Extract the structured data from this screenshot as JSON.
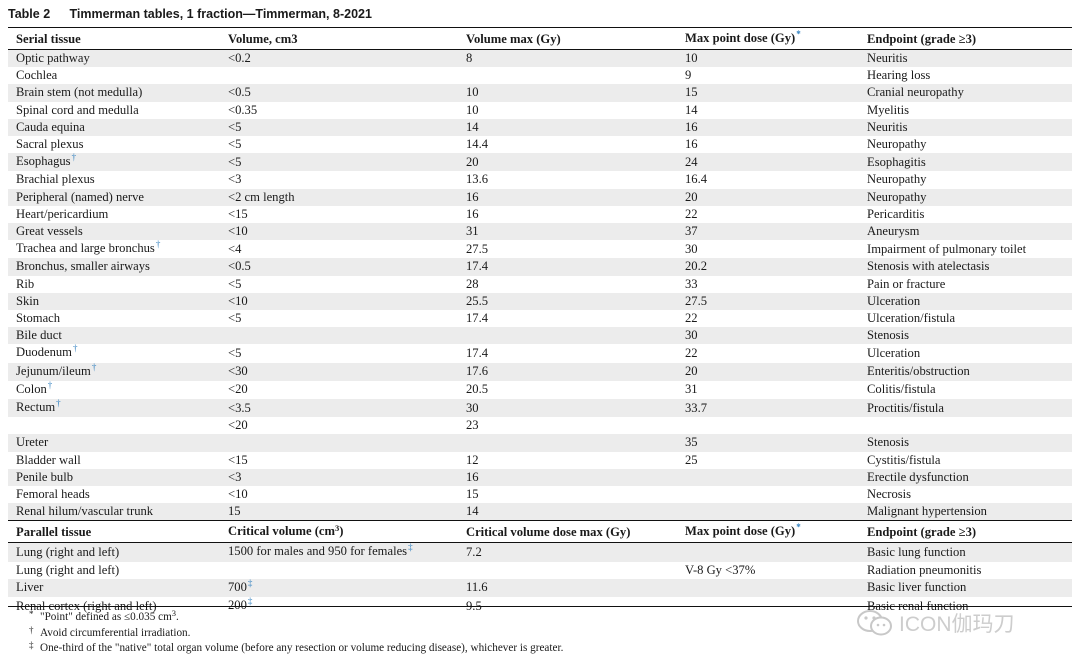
{
  "caption": {
    "label": "Table 2",
    "title": "Timmerman tables, 1 fraction—Timmerman, 8-2021"
  },
  "serial_header": [
    "Serial tissue",
    "Volume, cm3",
    "Volume max (Gy)",
    "Max point dose (Gy)",
    "Endpoint (grade ≥3)"
  ],
  "serial_header_mark": "*",
  "serial_rows": [
    [
      "Optic pathway",
      "<0.2",
      "8",
      "10",
      "Neuritis",
      ""
    ],
    [
      "Cochlea",
      "",
      "",
      "9",
      "Hearing loss",
      ""
    ],
    [
      "Brain stem (not medulla)",
      "<0.5",
      "10",
      "15",
      "Cranial neuropathy",
      ""
    ],
    [
      "Spinal cord and medulla",
      "<0.35",
      "10",
      "14",
      "Myelitis",
      ""
    ],
    [
      "Cauda equina",
      "<5",
      "14",
      "16",
      "Neuritis",
      ""
    ],
    [
      "Sacral plexus",
      "<5",
      "14.4",
      "16",
      "Neuropathy",
      ""
    ],
    [
      "Esophagus",
      "<5",
      "20",
      "24",
      "Esophagitis",
      "†"
    ],
    [
      "Brachial plexus",
      "<3",
      "13.6",
      "16.4",
      "Neuropathy",
      ""
    ],
    [
      "Peripheral (named) nerve",
      "<2 cm length",
      "16",
      "20",
      "Neuropathy",
      ""
    ],
    [
      "Heart/pericardium",
      "<15",
      "16",
      "22",
      "Pericarditis",
      ""
    ],
    [
      "Great vessels",
      "<10",
      "31",
      "37",
      "Aneurysm",
      ""
    ],
    [
      "Trachea and large bronchus",
      "<4",
      "27.5",
      "30",
      "Impairment of pulmonary toilet",
      "†"
    ],
    [
      "Bronchus, smaller airways",
      "<0.5",
      "17.4",
      "20.2",
      "Stenosis with atelectasis",
      ""
    ],
    [
      "Rib",
      "<5",
      "28",
      "33",
      "Pain or fracture",
      ""
    ],
    [
      "Skin",
      "<10",
      "25.5",
      "27.5",
      "Ulceration",
      ""
    ],
    [
      "Stomach",
      "<5",
      "17.4",
      "22",
      "Ulceration/fistula",
      ""
    ],
    [
      "Bile duct",
      "",
      "",
      "30",
      "Stenosis",
      ""
    ],
    [
      "Duodenum",
      "<5",
      "17.4",
      "22",
      "Ulceration",
      "†"
    ],
    [
      "Jejunum/ileum",
      "<30",
      "17.6",
      "20",
      "Enteritis/obstruction",
      "†"
    ],
    [
      "Colon",
      "<20",
      "20.5",
      "31",
      "Colitis/fistula",
      "†"
    ],
    [
      "Rectum",
      "<3.5",
      "30",
      "33.7",
      "Proctitis/fistula",
      "†"
    ],
    [
      "",
      "<20",
      "23",
      "",
      "",
      ""
    ],
    [
      "Ureter",
      "",
      "",
      "35",
      "Stenosis",
      ""
    ],
    [
      "Bladder wall",
      "<15",
      "12",
      "25",
      "Cystitis/fistula",
      ""
    ],
    [
      "Penile bulb",
      "<3",
      "16",
      "",
      "Erectile dysfunction",
      ""
    ],
    [
      "Femoral heads",
      "<10",
      "15",
      "",
      "Necrosis",
      ""
    ],
    [
      "Renal hilum/vascular trunk",
      "15",
      "14",
      "",
      "Malignant hypertension",
      ""
    ]
  ],
  "parallel_header": [
    "Parallel tissue",
    "Critical volume (cm",
    "3",
    ")",
    "Critical volume dose max (Gy)",
    "Max point dose (Gy)",
    "Endpoint (grade ≥3)"
  ],
  "parallel_rows": [
    [
      "Lung (right and left)",
      "1500 for males and 950 for females",
      "‡",
      "7.2",
      "",
      "Basic lung function"
    ],
    [
      "Lung (right and left)",
      "",
      "",
      "",
      "V-8 Gy <37%",
      "Radiation pneumonitis"
    ],
    [
      "Liver",
      "700",
      "‡",
      "11.6",
      "",
      "Basic liver function"
    ],
    [
      "Renal cortex (right and left)",
      "200",
      "‡",
      "9.5",
      "",
      "Basic renal function"
    ]
  ],
  "footnotes": [
    {
      "symbol": "*",
      "text": "\"Point\" defined as ≤0.035 cm",
      "sup": "3",
      "after": "."
    },
    {
      "symbol": "†",
      "text": "Avoid circumferential irradiation.",
      "sup": "",
      "after": ""
    },
    {
      "symbol": "‡",
      "text": "One-third of the \"native\" total organ volume (before any resection or volume reducing disease), whichever is greater.",
      "sup": "",
      "after": ""
    }
  ],
  "watermark": {
    "text": "ICON伽玛刀",
    "icon": "wechat-icon",
    "color": "#c8c8c8"
  },
  "colors": {
    "shade": "#ececec",
    "mark": "#2f7fbf",
    "rule": "#111111"
  }
}
